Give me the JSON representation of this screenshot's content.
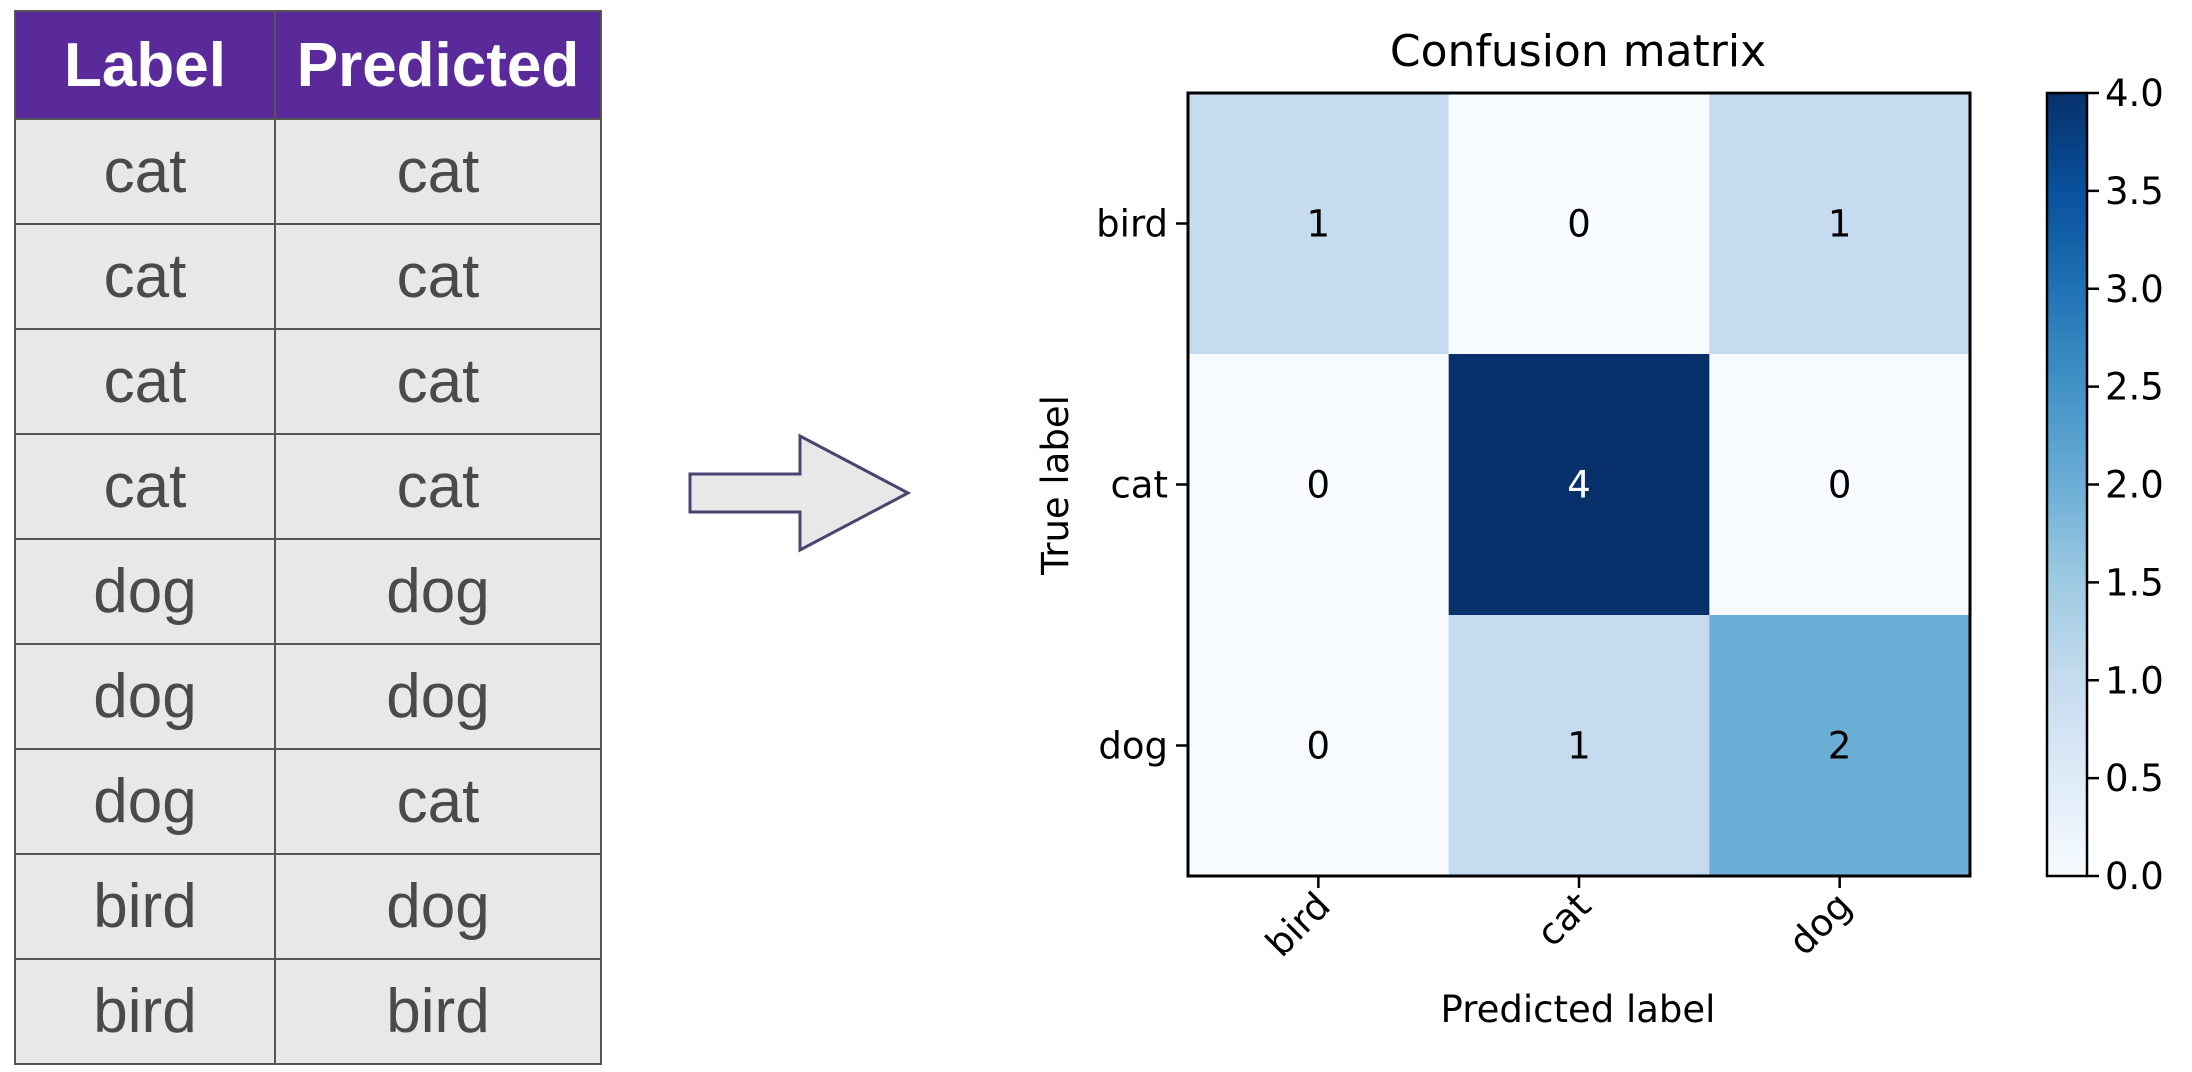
{
  "table": {
    "headers": [
      "Label",
      "Predicted"
    ],
    "rows": [
      [
        "cat",
        "cat"
      ],
      [
        "cat",
        "cat"
      ],
      [
        "cat",
        "cat"
      ],
      [
        "cat",
        "cat"
      ],
      [
        "dog",
        "dog"
      ],
      [
        "dog",
        "dog"
      ],
      [
        "dog",
        "cat"
      ],
      [
        "bird",
        "dog"
      ],
      [
        "bird",
        "bird"
      ]
    ],
    "header_color": "#5b2a9a",
    "cell_color": "#e8e8e8"
  },
  "arrow": {
    "icon": "right-arrow-icon",
    "fill": "#e8e8e8",
    "stroke": "#4a4470"
  },
  "chart_data": {
    "type": "heatmap",
    "title": "Confusion matrix",
    "xlabel": "Predicted label",
    "ylabel": "True label",
    "x_categories": [
      "bird",
      "cat",
      "dog"
    ],
    "y_categories": [
      "bird",
      "cat",
      "dog"
    ],
    "values": [
      [
        1,
        0,
        1
      ],
      [
        0,
        4,
        0
      ],
      [
        0,
        1,
        2
      ]
    ],
    "colormap": "Blues",
    "colorbar": {
      "range": [
        0.0,
        4.0
      ],
      "ticks": [
        "0.0",
        "0.5",
        "1.0",
        "1.5",
        "2.0",
        "2.5",
        "3.0",
        "3.5",
        "4.0"
      ]
    },
    "grid": false,
    "legend": "colorbar-right"
  }
}
